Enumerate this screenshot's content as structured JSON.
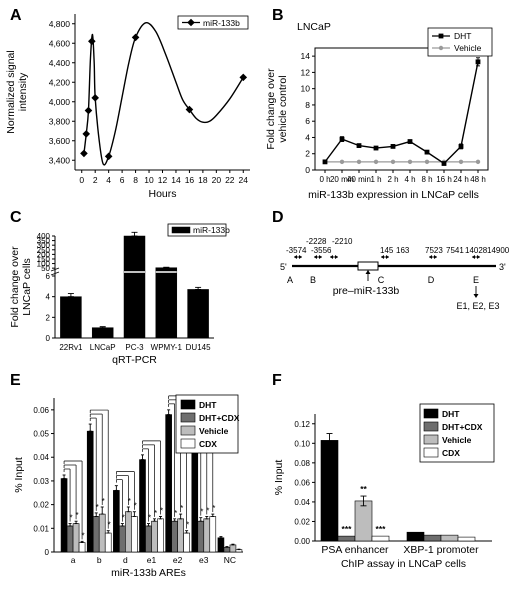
{
  "colors": {
    "black": "#000000",
    "dark_gray": "#6e6e6e",
    "light_gray": "#bdbdbd",
    "white": "#ffffff",
    "vehicle_gray": "#9a9a9a"
  },
  "chart_data": [
    {
      "id": "A",
      "type": "line",
      "panel_letter": "A",
      "title": "",
      "xlabel": "Hours",
      "ylabel": "Normalized signal intensity",
      "ylabel_lines": [
        "Normalized signal",
        "intensity"
      ],
      "xlim": [
        -1,
        25
      ],
      "ylim": [
        3300,
        4900
      ],
      "xticks": [
        0,
        2,
        4,
        6,
        8,
        10,
        12,
        14,
        16,
        18,
        20,
        22,
        24
      ],
      "yticks": [
        3400,
        3600,
        3800,
        4000,
        4200,
        4400,
        4600,
        4800
      ],
      "ytick_labels": [
        "3,400",
        "3,600",
        "3,800",
        "4,000",
        "4,200",
        "4,400",
        "4,600",
        "4,800"
      ],
      "legend": "top-right",
      "series": [
        {
          "name": "miR-133b",
          "points": [
            [
              0.33,
              3470
            ],
            [
              0.67,
              3670
            ],
            [
              1.0,
              3910
            ],
            [
              1.5,
              4620
            ],
            [
              2.0,
              4040
            ],
            [
              4.0,
              3440
            ],
            [
              8.0,
              4660
            ],
            [
              16.0,
              3920
            ],
            [
              24.0,
              4250
            ]
          ],
          "curve": [
            [
              0.33,
              3470
            ],
            [
              0.67,
              3670
            ],
            [
              1.0,
              3910
            ],
            [
              1.3,
              4450
            ],
            [
              1.6,
              4690
            ],
            [
              1.85,
              4400
            ],
            [
              2.0,
              4040
            ],
            [
              2.6,
              3600
            ],
            [
              3.2,
              3360
            ],
            [
              4.0,
              3440
            ],
            [
              5.0,
              3700
            ],
            [
              6.0,
              4050
            ],
            [
              7.0,
              4400
            ],
            [
              8.0,
              4660
            ],
            [
              9.5,
              4810
            ],
            [
              11.0,
              4720
            ],
            [
              12.5,
              4480
            ],
            [
              14.0,
              4200
            ],
            [
              15.0,
              4020
            ],
            [
              16.0,
              3920
            ],
            [
              17.0,
              3830
            ],
            [
              18.0,
              3790
            ],
            [
              19.0,
              3800
            ],
            [
              20.0,
              3860
            ],
            [
              22.0,
              4030
            ],
            [
              24.0,
              4250
            ]
          ]
        }
      ]
    },
    {
      "id": "B",
      "type": "line",
      "panel_letter": "B",
      "title": "LNCaP",
      "xlabel": "miR-133b expression in LNCaP cells",
      "ylabel": "Fold change over vehicle control",
      "ylabel_lines": [
        "Fold change over",
        "vehicle control"
      ],
      "categories": [
        "0 h",
        "20 min",
        "40 min",
        "1 h",
        "2 h",
        "4 h",
        "8 h",
        "16 h",
        "24 h",
        "48 h"
      ],
      "ylim": [
        0,
        15
      ],
      "yticks": [
        0,
        2,
        4,
        6,
        8,
        10,
        12,
        14
      ],
      "legend": "top-right",
      "series": [
        {
          "name": "DHT",
          "values": [
            1.0,
            3.8,
            3.0,
            2.7,
            2.9,
            3.5,
            2.2,
            0.8,
            2.9,
            13.3
          ],
          "errors": [
            0.0,
            0.3,
            0.15,
            0.1,
            0.1,
            0.1,
            0.15,
            0.1,
            0.3,
            0.5
          ]
        },
        {
          "name": "Vehicle",
          "values": [
            1.0,
            1.0,
            1.0,
            1.0,
            1.0,
            1.0,
            1.0,
            1.0,
            1.0,
            1.0
          ]
        }
      ]
    },
    {
      "id": "C",
      "type": "bar",
      "panel_letter": "C",
      "title": "",
      "xlabel": "qRT-PCR",
      "ylabel": "Fold change over LNCaP cells",
      "ylabel_lines": [
        "Fold change over",
        "LNCaP cells"
      ],
      "categories": [
        "22Rv1",
        "LNCaP",
        "PC-3",
        "WPMY-1",
        "DU145"
      ],
      "series": [
        {
          "name": "miR-133b",
          "values": [
            4.0,
            1.0,
            400,
            55,
            4.7
          ],
          "errors": [
            0.3,
            0.1,
            40,
            5,
            0.2
          ]
        }
      ],
      "axis_break": {
        "lower_ylim": [
          0,
          6
        ],
        "lower_yticks": [
          0,
          2,
          4,
          6
        ],
        "upper_ylim": [
          30,
          400
        ],
        "upper_yticks": [
          50,
          100,
          150,
          200,
          250,
          300,
          350,
          400
        ]
      },
      "legend": "top-right"
    },
    {
      "id": "D",
      "type": "diagram",
      "panel_letter": "D",
      "positions_top": [
        "-3574",
        "-2228",
        "-3556",
        "-2210",
        "145",
        "163",
        "7523",
        "7541",
        "14028",
        "14900"
      ],
      "end_5": "5'",
      "end_3": "3'",
      "site_letters": [
        "A",
        "B",
        "C",
        "D",
        "E"
      ],
      "pre_mirna": "pre–miR-133b",
      "e_sites": "E1, E2, E3"
    },
    {
      "id": "E",
      "type": "bar",
      "panel_letter": "E",
      "title": "",
      "xlabel": "miR-133b AREs",
      "ylabel": "% Input",
      "categories": [
        "a",
        "b",
        "d",
        "e1",
        "e2",
        "e3",
        "NC"
      ],
      "ylim": [
        0,
        0.065
      ],
      "yticks": [
        0,
        0.01,
        0.02,
        0.03,
        0.04,
        0.05,
        0.06
      ],
      "ytick_labels": [
        "0",
        "0.01",
        "0.02",
        "0.03",
        "0.04",
        "0.05",
        "0.06"
      ],
      "legend": "top-right",
      "series": [
        {
          "name": "DHT",
          "values": [
            0.031,
            0.051,
            0.026,
            0.039,
            0.058,
            0.045,
            0.006
          ],
          "errors": [
            0.0015,
            0.003,
            0.002,
            0.002,
            0.002,
            0.002,
            0.0005
          ]
        },
        {
          "name": "DHT+CDX",
          "values": [
            0.011,
            0.015,
            0.011,
            0.011,
            0.013,
            0.013,
            0.002
          ],
          "errors": [
            0.001,
            0.0015,
            0.001,
            0.001,
            0.001,
            0.0015,
            0.0003
          ]
        },
        {
          "name": "Vehicle",
          "values": [
            0.012,
            0.016,
            0.017,
            0.013,
            0.014,
            0.014,
            0.003
          ],
          "errors": [
            0.001,
            0.003,
            0.002,
            0.001,
            0.002,
            0.001,
            0.0003
          ]
        },
        {
          "name": "CDX",
          "values": [
            0.004,
            0.008,
            0.015,
            0.014,
            0.008,
            0.015,
            0.001
          ],
          "errors": [
            0.0005,
            0.001,
            0.002,
            0.001,
            0.001,
            0.001,
            0.0002
          ]
        }
      ],
      "annotations": "*"
    },
    {
      "id": "F",
      "type": "bar",
      "panel_letter": "F",
      "title": "",
      "xlabel": "ChIP assay in LNCaP cells",
      "ylabel": "% Input",
      "categories": [
        "PSA enhancer",
        "XBP-1 promoter"
      ],
      "ylim": [
        0,
        0.13
      ],
      "yticks": [
        0,
        0.02,
        0.04,
        0.06,
        0.08,
        0.1,
        0.12
      ],
      "ytick_labels": [
        "0.00",
        "0.02",
        "0.04",
        "0.06",
        "0.08",
        "0.10",
        "0.12"
      ],
      "legend": "top-right",
      "series": [
        {
          "name": "DHT",
          "values": [
            0.103,
            0.009
          ],
          "errors": [
            0.007,
            0
          ]
        },
        {
          "name": "DHT+CDX",
          "values": [
            0.005,
            0.006
          ],
          "errors": [
            0,
            0
          ]
        },
        {
          "name": "Vehicle",
          "values": [
            0.041,
            0.006
          ],
          "errors": [
            0.005,
            0
          ]
        },
        {
          "name": "CDX",
          "values": [
            0.005,
            0.004
          ],
          "errors": [
            0,
            0
          ]
        }
      ],
      "annotations": [
        "***",
        "**",
        "***"
      ]
    }
  ]
}
